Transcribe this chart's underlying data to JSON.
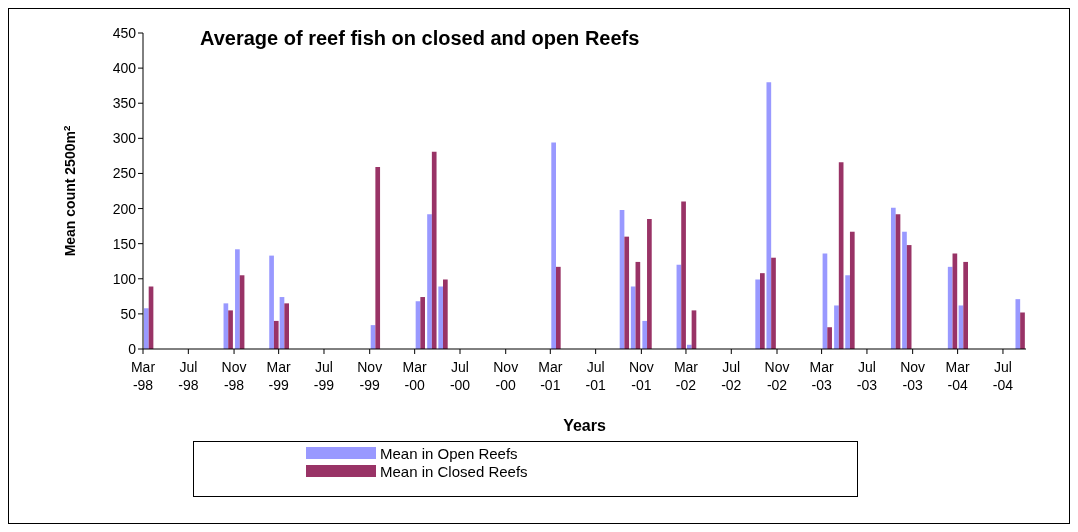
{
  "chart_data": {
    "type": "bar",
    "title": "Average of reef fish on closed and open Reefs",
    "xlabel": "Years",
    "ylabel": "Mean count 2500m$^{2}$",
    "x": [
      "1998-03-15",
      "1998-10-15",
      "1998-11-15",
      "1999-02-15",
      "1999-03-15",
      "1999-11-15",
      "2000-03-15",
      "2000-04-15",
      "2000-05-15",
      "2001-03-15",
      "2001-09-15",
      "2001-10-15",
      "2001-11-15",
      "2002-02-15",
      "2002-03-15",
      "2002-09-15",
      "2002-10-15",
      "2003-03-15",
      "2003-04-15",
      "2003-05-15",
      "2003-09-15",
      "2003-10-15",
      "2004-02-15",
      "2004-03-15",
      "2004-08-15"
    ],
    "series": [
      {
        "name": "Mean in Open Reefs",
        "color": "#9999ff",
        "values": [
          58,
          65,
          142,
          133,
          74,
          34,
          68,
          192,
          89,
          294,
          198,
          89,
          40,
          120,
          6,
          99,
          380,
          136,
          62,
          105,
          201,
          167,
          117,
          62,
          71
        ]
      },
      {
        "name": "Mean in Closed Reefs",
        "color": "#993366",
        "values": [
          89,
          55,
          105,
          40,
          65,
          259,
          74,
          281,
          99,
          117,
          160,
          124,
          185,
          210,
          55,
          108,
          130,
          31,
          266,
          167,
          192,
          148,
          136,
          124,
          52
        ]
      }
    ],
    "xlim": [
      "1998-03-01",
      "2004-09-01"
    ],
    "xticks": [
      {
        "value": "1998-03-01",
        "label": "Mar-98"
      },
      {
        "value": "1998-07-01",
        "label": "Jul-98"
      },
      {
        "value": "1998-11-01",
        "label": "Nov-98"
      },
      {
        "value": "1999-03-01",
        "label": "Mar-99"
      },
      {
        "value": "1999-07-01",
        "label": "Jul-99"
      },
      {
        "value": "1999-11-01",
        "label": "Nov-99"
      },
      {
        "value": "2000-03-01",
        "label": "Mar-00"
      },
      {
        "value": "2000-07-01",
        "label": "Jul-00"
      },
      {
        "value": "2000-11-01",
        "label": "Nov-00"
      },
      {
        "value": "2001-03-01",
        "label": "Mar-01"
      },
      {
        "value": "2001-07-01",
        "label": "Jul-01"
      },
      {
        "value": "2001-11-01",
        "label": "Nov-01"
      },
      {
        "value": "2002-03-01",
        "label": "Mar-02"
      },
      {
        "value": "2002-07-01",
        "label": "Jul-02"
      },
      {
        "value": "2002-11-01",
        "label": "Nov-02"
      },
      {
        "value": "2003-03-01",
        "label": "Mar-03"
      },
      {
        "value": "2003-07-01",
        "label": "Jul-03"
      },
      {
        "value": "2003-11-01",
        "label": "Nov-03"
      },
      {
        "value": "2004-03-01",
        "label": "Mar-04"
      },
      {
        "value": "2004-07-01",
        "label": "Jul-04"
      }
    ],
    "ylim": [
      0,
      450
    ],
    "yticks": [
      0,
      50,
      100,
      150,
      200,
      250,
      300,
      350,
      400,
      450
    ],
    "grid": false,
    "legend": "bottom"
  }
}
